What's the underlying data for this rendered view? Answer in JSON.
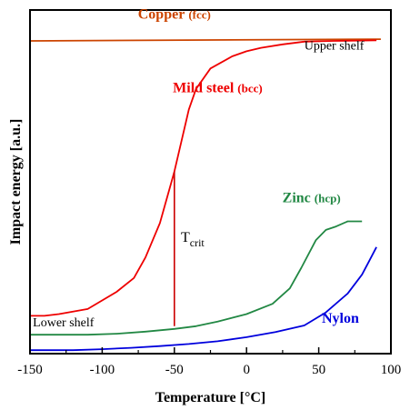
{
  "chart_data": {
    "type": "line",
    "xlabel": "Temperature [°C]",
    "ylabel": "Impact energy [a.u.]",
    "xlim": [
      -150,
      100
    ],
    "ylim": [
      0,
      100
    ],
    "x_ticks": [
      -150,
      -100,
      -50,
      0,
      50,
      100
    ],
    "y_ticks_labeled": false,
    "grid": false,
    "legend": "none (series labeled directly on chart)",
    "series": [
      {
        "name": "Copper",
        "name_suffix": "(fcc)",
        "color": "#cc4400",
        "x": [
          -150,
          93
        ],
        "y": [
          91,
          91.5
        ]
      },
      {
        "name": "Mild steel",
        "name_suffix": "(bcc)",
        "color": "#ee0000",
        "x": [
          -150,
          -140,
          -130,
          -110,
          -90,
          -78,
          -70,
          -60,
          -50,
          -40,
          -35,
          -25,
          -10,
          0,
          10,
          25,
          40,
          60,
          80,
          90
        ],
        "y": [
          11,
          11,
          11.5,
          13,
          18,
          22,
          28,
          38,
          53,
          71,
          77,
          83,
          86.5,
          88,
          89,
          90,
          90.8,
          91,
          91.1,
          91.2
        ]
      },
      {
        "name": "Zinc",
        "name_suffix": "(hcp)",
        "color": "#228844",
        "x": [
          -150,
          -130,
          -110,
          -90,
          -70,
          -50,
          -35,
          -20,
          0,
          18,
          30,
          38,
          48,
          55,
          62,
          70,
          80
        ],
        "y": [
          5.5,
          5.5,
          5.5,
          5.8,
          6.4,
          7.2,
          8,
          9.3,
          11.5,
          14.5,
          19,
          25,
          33,
          36,
          37,
          38.5,
          38.5
        ]
      },
      {
        "name": "Nylon",
        "name_suffix": "",
        "color": "#0000dd",
        "x": [
          -150,
          -120,
          -100,
          -80,
          -60,
          -40,
          -20,
          0,
          20,
          40,
          55,
          70,
          80,
          85,
          90
        ],
        "y": [
          1,
          1,
          1.3,
          1.7,
          2.2,
          2.8,
          3.6,
          4.8,
          6.3,
          8.2,
          12,
          17.5,
          23,
          27,
          31
        ]
      }
    ],
    "annotations": [
      {
        "text": "Upper shelf",
        "x": 40,
        "y": 88.5
      },
      {
        "text": "Lower shelf",
        "x": -148,
        "y": 8
      },
      {
        "text_main": "T",
        "text_sub": "crit",
        "x": -48,
        "y": 32.5,
        "line_x": -50,
        "line_y": [
          8,
          53
        ],
        "line_color": "#cc0000"
      }
    ],
    "series_label_positions": [
      {
        "series": "Copper",
        "x": -50,
        "y": 97.5
      },
      {
        "series": "Mild steel",
        "x": -20,
        "y": 76
      },
      {
        "series": "Zinc",
        "x": 45,
        "y": 44
      },
      {
        "series": "Nylon",
        "x": 65,
        "y": 9
      }
    ]
  }
}
